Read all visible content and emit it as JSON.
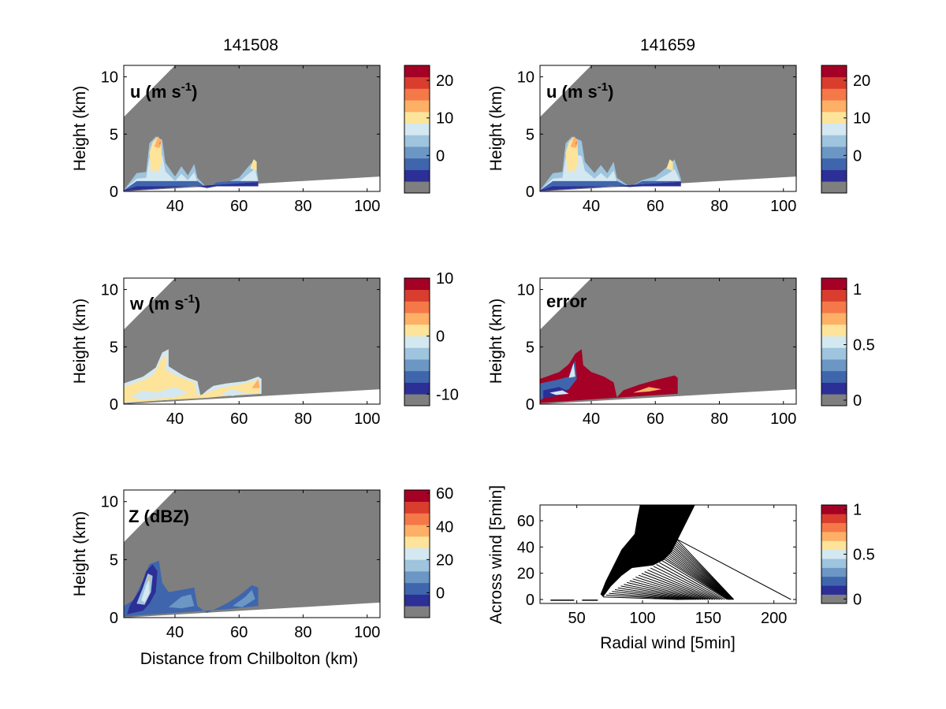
{
  "chart_data": [
    {
      "type": "heatmap",
      "id": "p1",
      "title": "141508",
      "panel_label": "u (m s",
      "panel_label_sup": "-1",
      "ylabel": "Height (km)",
      "xlabel": "",
      "xlim": [
        24,
        104
      ],
      "ylim": [
        0,
        11
      ],
      "xticks": [
        40,
        60,
        80,
        100
      ],
      "yticks": [
        0,
        5,
        10
      ],
      "colorbar": {
        "vmin": -10,
        "vmax": 24,
        "ticks": [
          0,
          10,
          20
        ]
      },
      "blobs": [
        {
          "x": [
            24,
            66
          ],
          "heights": [
            [
              24,
              0.1
            ],
            [
              28,
              1.6
            ],
            [
              31,
              1.7
            ],
            [
              32,
              4.2
            ],
            [
              34,
              4.8
            ],
            [
              36,
              4.5
            ],
            [
              37,
              2.5
            ],
            [
              40,
              1.3
            ],
            [
              42,
              2.2
            ],
            [
              44,
              1.4
            ],
            [
              46,
              2.4
            ],
            [
              47,
              1.2
            ],
            [
              50,
              0.3
            ],
            [
              53,
              0.8
            ],
            [
              57,
              0.9
            ],
            [
              60,
              1.2
            ],
            [
              63,
              2.2
            ],
            [
              65,
              2.8
            ],
            [
              66,
              1.0
            ]
          ]
        }
      ]
    },
    {
      "type": "heatmap",
      "id": "p2",
      "title": "141659",
      "panel_label": "u (m s",
      "panel_label_sup": "-1",
      "ylabel": "Height (km)",
      "xlabel": "",
      "xlim": [
        24,
        104
      ],
      "ylim": [
        0,
        11
      ],
      "xticks": [
        40,
        60,
        80,
        100
      ],
      "yticks": [
        0,
        5,
        10
      ],
      "colorbar": {
        "vmin": -10,
        "vmax": 24,
        "ticks": [
          0,
          10,
          20
        ]
      },
      "blobs": [
        {
          "x": [
            24,
            68
          ],
          "heights": [
            [
              24,
              0.1
            ],
            [
              28,
              1.6
            ],
            [
              31,
              1.7
            ],
            [
              32,
              4.2
            ],
            [
              34,
              4.8
            ],
            [
              37,
              4.4
            ],
            [
              38,
              2.6
            ],
            [
              41,
              1.6
            ],
            [
              43,
              2.3
            ],
            [
              45,
              1.6
            ],
            [
              47,
              2.6
            ],
            [
              48,
              1.2
            ],
            [
              52,
              0.4
            ],
            [
              56,
              1.0
            ],
            [
              60,
              1.3
            ],
            [
              64,
              2.2
            ],
            [
              66,
              2.8
            ],
            [
              68,
              1.1
            ]
          ]
        }
      ]
    },
    {
      "type": "heatmap",
      "id": "p3",
      "title": "",
      "panel_label": "w (m s",
      "panel_label_sup": "-1",
      "ylabel": "Height (km)",
      "xlabel": "",
      "xlim": [
        24,
        104
      ],
      "ylim": [
        0,
        11
      ],
      "xticks": [
        40,
        60,
        80,
        100
      ],
      "yticks": [
        0,
        5,
        10
      ],
      "colorbar": {
        "vmin": -12,
        "vmax": 10,
        "ticks": [
          -10,
          0,
          10
        ]
      }
    },
    {
      "type": "heatmap",
      "id": "p4",
      "title": "",
      "panel_label": "error",
      "panel_label_sup": "",
      "ylabel": "Height (km)",
      "xlabel": "",
      "xlim": [
        24,
        104
      ],
      "ylim": [
        0,
        11
      ],
      "xticks": [
        40,
        60,
        80,
        100
      ],
      "yticks": [
        0,
        5,
        10
      ],
      "colorbar": {
        "vmin": -0.05,
        "vmax": 1.1,
        "ticks": [
          0,
          0.5,
          1
        ]
      }
    },
    {
      "type": "heatmap",
      "id": "p5",
      "title": "",
      "panel_label": "Z (dBZ)",
      "panel_label_sup": "",
      "ylabel": "Height (km)",
      "xlabel": "Distance from Chilbolton (km)",
      "xlim": [
        24,
        104
      ],
      "ylim": [
        0,
        11
      ],
      "xticks": [
        40,
        60,
        80,
        100
      ],
      "yticks": [
        0,
        5,
        10
      ],
      "colorbar": {
        "vmin": -15,
        "vmax": 62,
        "ticks": [
          0,
          20,
          40,
          60
        ]
      }
    },
    {
      "type": "scatter",
      "id": "p6",
      "title": "",
      "panel_label": "",
      "ylabel": "Across wind [5min]",
      "xlabel": "Radial wind [5min]",
      "xlim": [
        22,
        217
      ],
      "ylim": [
        -3,
        72
      ],
      "xticks": [
        50,
        100,
        150,
        200
      ],
      "yticks": [
        0,
        20,
        40,
        60
      ],
      "colorbar": {
        "vmin": -0.05,
        "vmax": 1.05,
        "ticks": [
          0,
          0.5,
          1
        ]
      },
      "filled_region": [
        [
          70,
          2
        ],
        [
          76,
          10
        ],
        [
          84,
          18
        ],
        [
          92,
          24
        ],
        [
          108,
          26
        ],
        [
          116,
          30
        ],
        [
          122,
          36
        ],
        [
          128,
          48
        ],
        [
          140,
          72
        ],
        [
          98,
          72
        ],
        [
          96,
          62
        ],
        [
          94,
          50
        ],
        [
          84,
          38
        ],
        [
          72,
          14
        ],
        [
          68,
          4
        ]
      ],
      "hatched_region": [
        [
          70,
          2
        ],
        [
          116,
          30
        ],
        [
          126,
          46
        ],
        [
          213,
          0
        ]
      ],
      "baseline_segments": [
        [
          30,
          -0.5,
          48,
          -0.5
        ],
        [
          54,
          -0.5,
          66,
          -0.5
        ]
      ]
    }
  ],
  "colors": {
    "gray_fill": "#7f7f7f",
    "colorbar": [
      "#2c2f96",
      "#3f66ad",
      "#6c96c4",
      "#9ec4de",
      "#d4e8f1",
      "#fde49a",
      "#fdb066",
      "#f57849",
      "#d93d2e",
      "#a50026"
    ]
  }
}
